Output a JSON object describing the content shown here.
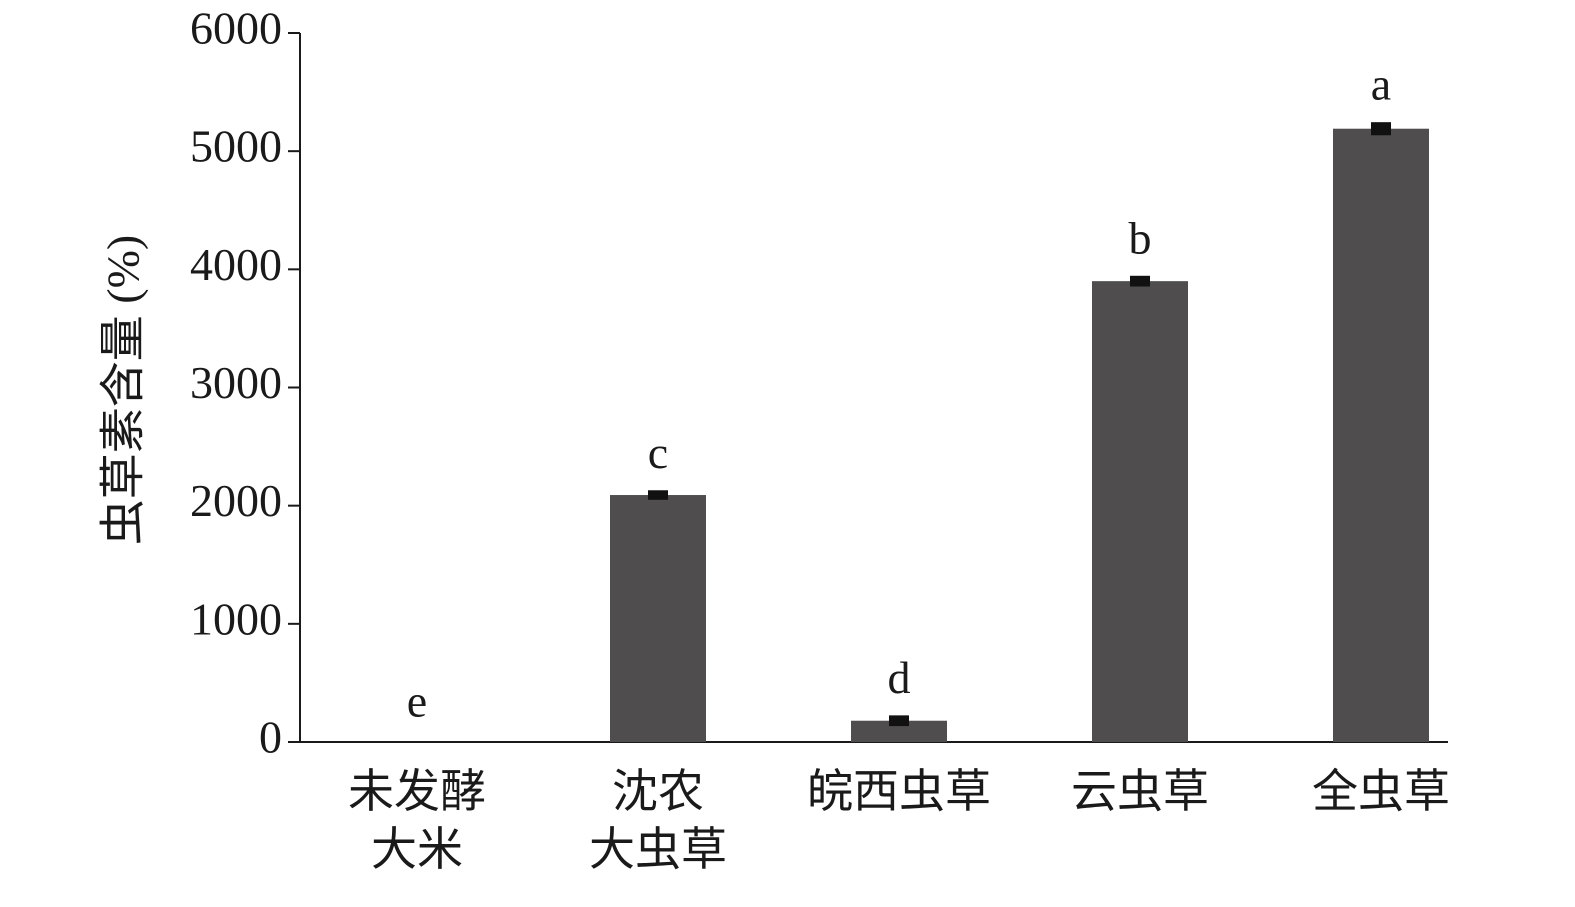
{
  "chart_data": {
    "type": "bar",
    "y_label": "虫草素含量 (%)",
    "categories": [
      "未发酵\n大米",
      "沈农\n大虫草",
      "皖西虫草",
      "云虫草",
      "全虫草"
    ],
    "values": [
      0,
      2090,
      180,
      3900,
      5190
    ],
    "errors": [
      0,
      15,
      20,
      20,
      30
    ],
    "significance_labels": [
      "e",
      "c",
      "d",
      "b",
      "a"
    ],
    "color": "#4f4d4e",
    "ylim": [
      0,
      6000
    ],
    "yticks": [
      0,
      1000,
      2000,
      3000,
      4000,
      5000,
      6000
    ],
    "grid": false
  }
}
